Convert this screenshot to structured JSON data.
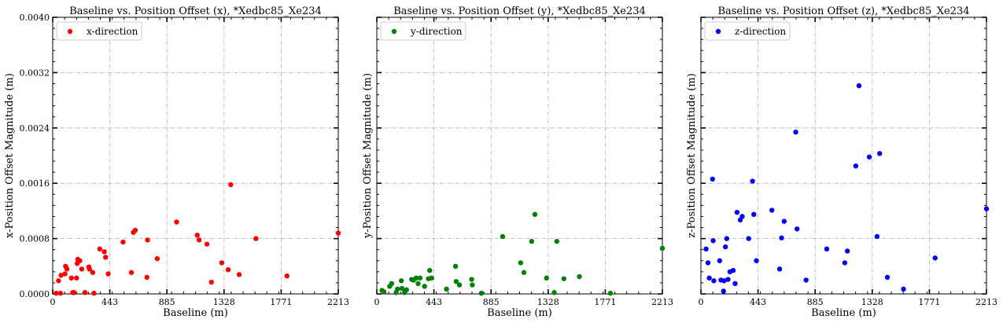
{
  "chart_data": [
    {
      "type": "scatter",
      "title": "Baseline vs. Position Offset (x), *Xedbc85_Xe234",
      "xlabel": "Baseline (m)",
      "ylabel": "x-Position Offset Magnitude (m)",
      "xlim": [
        0,
        2213
      ],
      "ylim": [
        0,
        0.004
      ],
      "xticks": [
        "0",
        "443",
        "885",
        "1328",
        "1771",
        "2213"
      ],
      "yticks": [
        "0.0000",
        "0.0008",
        "0.0016",
        "0.0024",
        "0.0032",
        "0.0040"
      ],
      "grid": true,
      "legend_position": "top-left",
      "series": [
        {
          "name": "x-direction",
          "color": "#ff0000",
          "points": [
            [
              27,
              1e-05
            ],
            [
              45,
              0.00019
            ],
            [
              60,
              1e-05
            ],
            [
              65,
              0.00027
            ],
            [
              95,
              0.00029
            ],
            [
              100,
              0.0004
            ],
            [
              110,
              0.00036
            ],
            [
              145,
              0.00023
            ],
            [
              155,
              2e-05
            ],
            [
              165,
              2e-05
            ],
            [
              185,
              0.00023
            ],
            [
              190,
              0.00044
            ],
            [
              195,
              0.0005
            ],
            [
              210,
              0.00048
            ],
            [
              225,
              0.00036
            ],
            [
              250,
              2e-05
            ],
            [
              280,
              0.00039
            ],
            [
              285,
              0.00036
            ],
            [
              310,
              0.00031
            ],
            [
              320,
              1e-05
            ],
            [
              365,
              0.00065
            ],
            [
              400,
              0.00061
            ],
            [
              410,
              0.00053
            ],
            [
              430,
              0.00029
            ],
            [
              545,
              0.00075
            ],
            [
              610,
              0.00031
            ],
            [
              625,
              0.00089
            ],
            [
              640,
              0.00092
            ],
            [
              730,
              0.00024
            ],
            [
              735,
              0.00078
            ],
            [
              810,
              0.00051
            ],
            [
              960,
              0.00104
            ],
            [
              1120,
              0.00085
            ],
            [
              1135,
              0.00078
            ],
            [
              1195,
              0.00072
            ],
            [
              1230,
              0.00017
            ],
            [
              1310,
              0.00045
            ],
            [
              1360,
              0.00035
            ],
            [
              1380,
              0.00158
            ],
            [
              1445,
              0.00028
            ],
            [
              1575,
              0.0008
            ],
            [
              1815,
              0.00026
            ],
            [
              2213,
              0.00088
            ]
          ]
        }
      ]
    },
    {
      "type": "scatter",
      "title": "Baseline vs. Position Offset (y), *Xedbc85_Xe234",
      "xlabel": "Baseline (m)",
      "ylabel": "y-Position Offset Magnitude (m)",
      "xlim": [
        0,
        2213
      ],
      "ylim": [
        0,
        0.004
      ],
      "xticks": [
        "0",
        "443",
        "885",
        "1328",
        "1771",
        "2213"
      ],
      "yticks": [],
      "grid": true,
      "legend_position": "top-left",
      "series": [
        {
          "name": "y-direction",
          "color": "#008000",
          "points": [
            [
              40,
              5e-05
            ],
            [
              55,
              3e-05
            ],
            [
              100,
              0.00011
            ],
            [
              115,
              0.00015
            ],
            [
              150,
              2e-05
            ],
            [
              160,
              7e-05
            ],
            [
              190,
              0.00019
            ],
            [
              195,
              8e-05
            ],
            [
              215,
              2e-05
            ],
            [
              230,
              6e-05
            ],
            [
              270,
              0.00021
            ],
            [
              285,
              0.0002
            ],
            [
              305,
              0.00023
            ],
            [
              320,
              0.00015
            ],
            [
              335,
              0.00023
            ],
            [
              370,
              0.00011
            ],
            [
              400,
              0.00022
            ],
            [
              410,
              0.00034
            ],
            [
              425,
              0.00023
            ],
            [
              540,
              7e-05
            ],
            [
              610,
              0.0004
            ],
            [
              615,
              0.00018
            ],
            [
              640,
              0.00013
            ],
            [
              735,
              0.00021
            ],
            [
              740,
              0.00013
            ],
            [
              810,
              1e-05
            ],
            [
              975,
              0.00083
            ],
            [
              1115,
              0.00045
            ],
            [
              1140,
              0.00031
            ],
            [
              1200,
              0.00076
            ],
            [
              1225,
              0.00115
            ],
            [
              1315,
              0.00023
            ],
            [
              1375,
              2e-05
            ],
            [
              1395,
              0.00076
            ],
            [
              1450,
              0.00022
            ],
            [
              1570,
              0.00025
            ],
            [
              1810,
              1e-05
            ],
            [
              2213,
              0.00066
            ]
          ]
        }
      ]
    },
    {
      "type": "scatter",
      "title": "Baseline vs. Position Offset (z), *Xedbc85_Xe234",
      "xlabel": "Baseline (m)",
      "ylabel": "z-Position Offset Magnitude (m)",
      "xlim": [
        0,
        2213
      ],
      "ylim": [
        0,
        0.004
      ],
      "xticks": [
        "0",
        "443",
        "885",
        "1328",
        "1771",
        "2213"
      ],
      "yticks": [],
      "grid": true,
      "legend_position": "top-left",
      "series": [
        {
          "name": "z-direction",
          "color": "#0000ff",
          "points": [
            [
              40,
              0.00065
            ],
            [
              55,
              0.00045
            ],
            [
              65,
              0.00023
            ],
            [
              90,
              0.00166
            ],
            [
              95,
              0.00077
            ],
            [
              100,
              0.00019
            ],
            [
              145,
              0.00048
            ],
            [
              155,
              0.0002
            ],
            [
              175,
              4e-05
            ],
            [
              180,
              0.00019
            ],
            [
              190,
              0.00068
            ],
            [
              200,
              0.0008
            ],
            [
              210,
              0.00021
            ],
            [
              225,
              0.00032
            ],
            [
              250,
              0.00034
            ],
            [
              265,
              0.00015
            ],
            [
              280,
              0.00118
            ],
            [
              305,
              0.00107
            ],
            [
              320,
              0.00112
            ],
            [
              370,
              0.0008
            ],
            [
              400,
              0.00163
            ],
            [
              410,
              0.00115
            ],
            [
              430,
              0.00048
            ],
            [
              550,
              0.00121
            ],
            [
              610,
              0.00036
            ],
            [
              625,
              0.00081
            ],
            [
              645,
              0.00105
            ],
            [
              735,
              0.00234
            ],
            [
              745,
              0.00094
            ],
            [
              815,
              0.0002
            ],
            [
              975,
              0.00065
            ],
            [
              1115,
              0.00045
            ],
            [
              1135,
              0.00062
            ],
            [
              1200,
              0.00185
            ],
            [
              1225,
              0.00301
            ],
            [
              1305,
              0.00198
            ],
            [
              1365,
              0.00083
            ],
            [
              1385,
              0.00203
            ],
            [
              1445,
              0.00024
            ],
            [
              1570,
              7e-05
            ],
            [
              1815,
              0.00052
            ],
            [
              2213,
              0.00123
            ]
          ]
        }
      ]
    }
  ]
}
